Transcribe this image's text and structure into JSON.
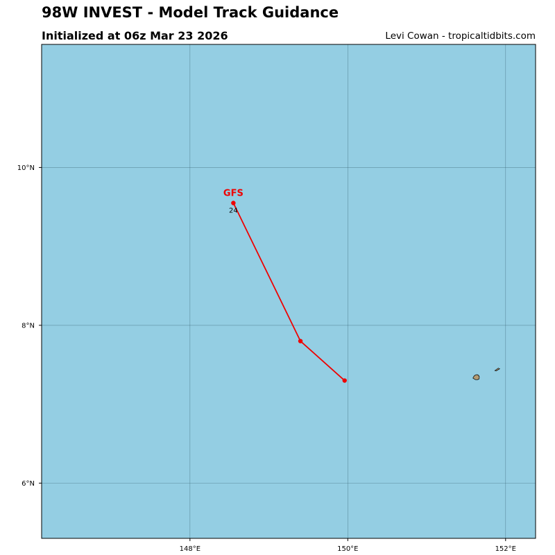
{
  "header": {
    "title": "98W INVEST - Model Track Guidance",
    "subtitle": "Initialized at 06z Mar 23 2026",
    "credit": "Levi Cowan - tropicaltidbits.com"
  },
  "colors": {
    "ocean": "#94CEE3",
    "land": "#B39B73",
    "grid": "#2f5a6a",
    "frame": "#000000",
    "track": "#EE0000"
  },
  "map": {
    "lon_range": [
      146.12,
      152.38
    ],
    "lat_range": [
      5.3,
      11.56
    ],
    "lon_ticks": [
      {
        "value": 148,
        "label": "148°E"
      },
      {
        "value": 150,
        "label": "150°E"
      },
      {
        "value": 152,
        "label": "152°E"
      }
    ],
    "lat_ticks": [
      {
        "value": 10,
        "label": "10°N"
      },
      {
        "value": 8,
        "label": "8°N"
      },
      {
        "value": 6,
        "label": "6°N"
      }
    ],
    "islands": [
      {
        "name": "island-west",
        "lon": 151.63,
        "lat": 7.34
      },
      {
        "name": "island-east",
        "lon": 151.89,
        "lat": 7.44
      }
    ]
  },
  "tracks": [
    {
      "model": "GFS",
      "color": "#EE0000",
      "points": [
        {
          "lon": 149.96,
          "lat": 7.3,
          "hour": ""
        },
        {
          "lon": 149.4,
          "lat": 7.8,
          "hour": ""
        },
        {
          "lon": 148.55,
          "lat": 9.55,
          "hour": "24"
        }
      ]
    }
  ]
}
